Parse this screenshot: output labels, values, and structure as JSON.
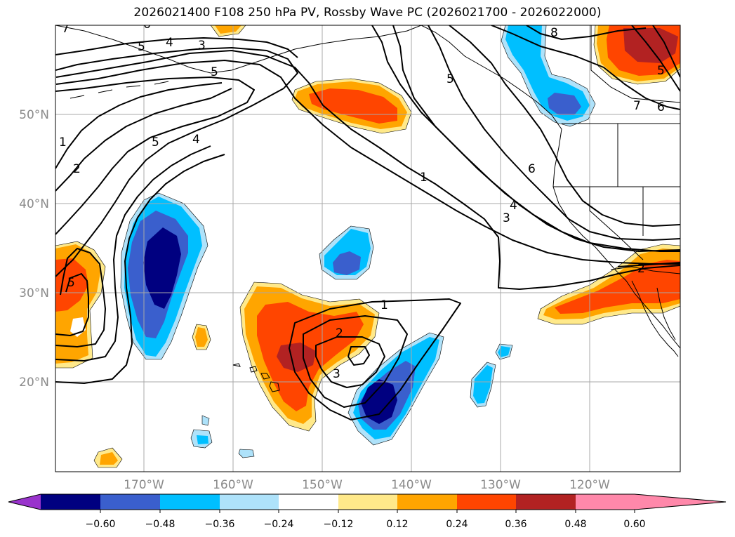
{
  "title": "2026021400 F108 250 hPa PV, Rossby Wave PC (2026021700 - 2026022000)",
  "map": {
    "lat_labels": [
      "50°N",
      "40°N",
      "30°N",
      "20°N"
    ],
    "lon_labels": [
      "170°W",
      "160°W",
      "150°W",
      "140°W",
      "130°W",
      "120°W"
    ]
  },
  "colorbar": {
    "tick_labels": [
      "−0.60",
      "−0.48",
      "−0.36",
      "−0.24",
      "−0.12",
      "0.12",
      "0.24",
      "0.36",
      "0.48",
      "0.60"
    ],
    "colors": [
      "#9933cc",
      "#000080",
      "#3a5fcd",
      "#00bfff",
      "#aee2fa",
      "#ffffff",
      "#ffe98a",
      "#ffa500",
      "#ff4500",
      "#b22222",
      "#ff88aa"
    ]
  },
  "fill_colors": {
    "neg1": "#aee2fa",
    "neg2": "#00bfff",
    "neg3": "#3a5fcd",
    "neg4": "#000080",
    "pos1": "#ffe98a",
    "pos2": "#ffa500",
    "pos3": "#ff4500",
    "pos4": "#b22222"
  },
  "contour_labels": {
    "a": "7",
    "b": "6",
    "c": "5",
    "d": "4",
    "e": "3",
    "f": "5",
    "g": "1",
    "h": "2",
    "i": "5",
    "j": "4",
    "k": "5",
    "l": "6",
    "m": "1",
    "n": "4",
    "o": "3",
    "p": "8",
    "q": "7",
    "r": "6",
    "s": "5",
    "t": "2",
    "u": "1",
    "v": "2",
    "w": "3",
    "x": "5"
  }
}
